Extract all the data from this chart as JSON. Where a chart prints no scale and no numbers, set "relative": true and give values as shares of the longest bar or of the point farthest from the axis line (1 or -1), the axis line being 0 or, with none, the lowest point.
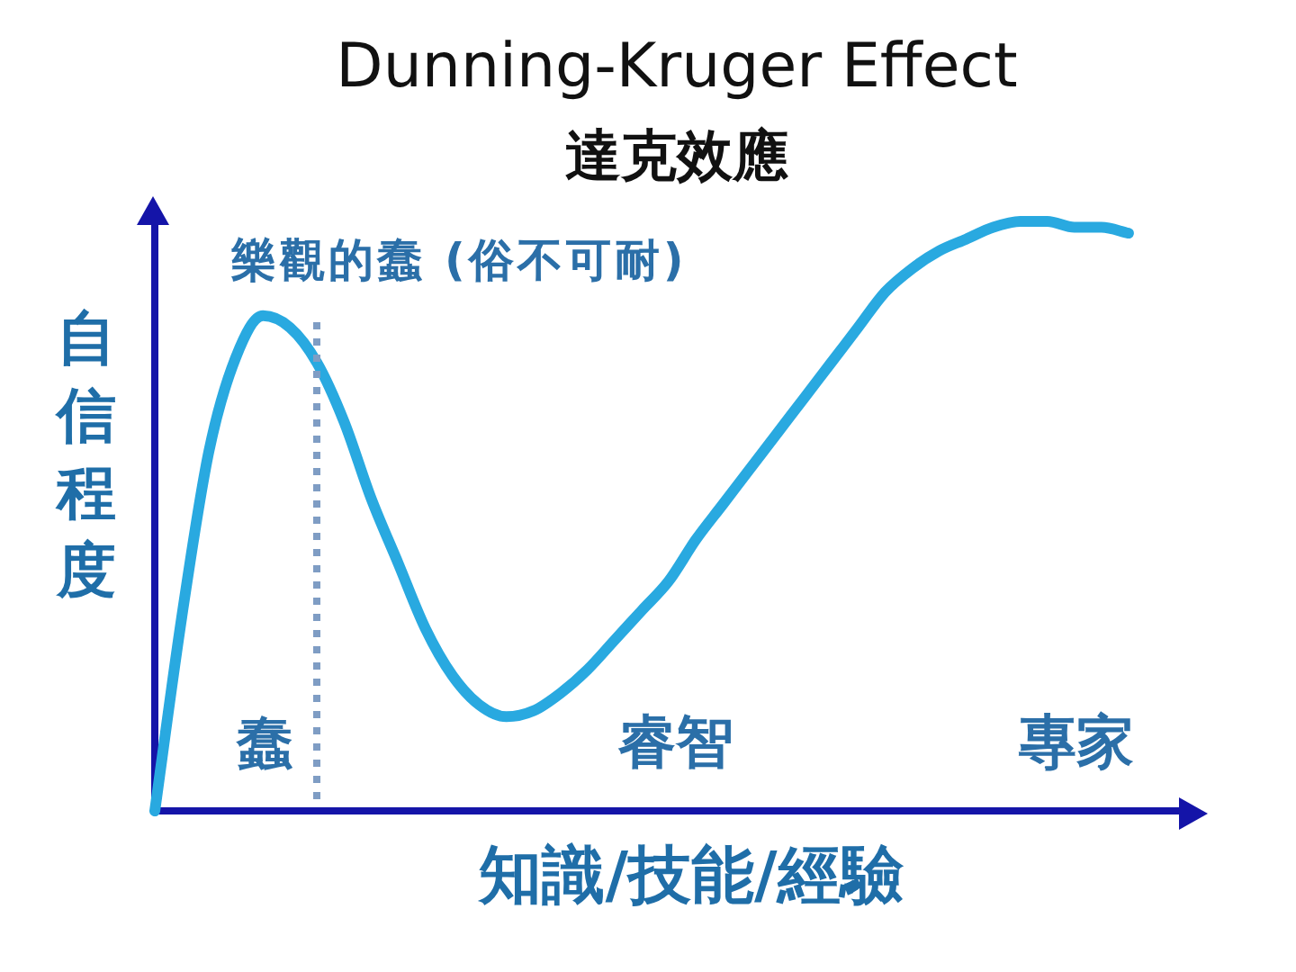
{
  "chart_data": {
    "type": "line",
    "title": "Dunning-Kruger Effect",
    "subtitle": "達克效應",
    "xlabel": "知識/技能/經驗",
    "ylabel": "自信程度",
    "relative": true,
    "categories": [
      null,
      null,
      null,
      null,
      null,
      null,
      null,
      null,
      null,
      null,
      null,
      null,
      null,
      null,
      null,
      null,
      null,
      null,
      null,
      null,
      null,
      null,
      null,
      null,
      null,
      null,
      null,
      null,
      null,
      null,
      null,
      null,
      null,
      null,
      null,
      null,
      null,
      null,
      null
    ],
    "series": [
      {
        "color": "#29a9e0",
        "values": [
          0,
          0.33,
          0.61,
          0.77,
          0.84,
          0.82,
          0.76,
          0.66,
          0.53,
          0.42,
          0.31,
          0.23,
          0.18,
          0.16,
          0.17,
          0.2,
          0.24,
          0.29,
          0.34,
          0.39,
          0.46,
          0.52,
          0.58,
          0.64,
          0.7,
          0.76,
          0.82,
          0.88,
          0.92,
          0.95,
          0.97,
          0.99,
          1,
          1,
          0.99,
          0.99,
          0.98,
          null,
          null
        ]
      }
    ],
    "annotations": [
      "樂觀的蠢 (俗不可耐)",
      "蠢",
      "睿智",
      "專家"
    ]
  }
}
